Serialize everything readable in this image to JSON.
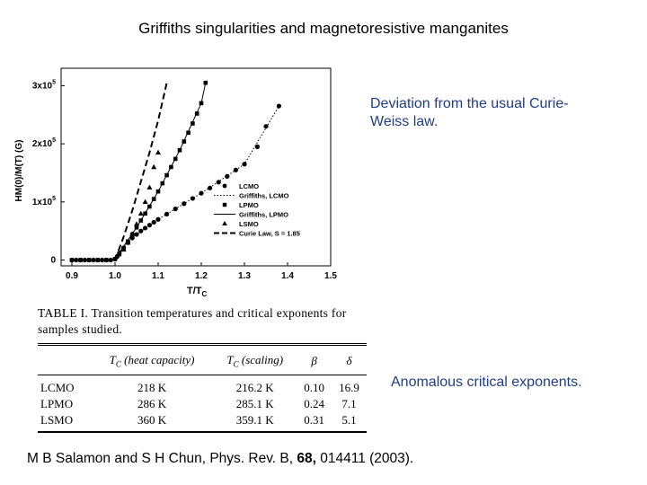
{
  "title": "Griffiths singularities and magnetoresistive manganites",
  "notes": {
    "deviation": "Deviation from the usual Curie-Weiss law.",
    "exponents": "Anomalous critical exponents."
  },
  "reference": {
    "prefix": "M B Salamon and S H Chun, Phys. Rev. B, ",
    "volume": "68,",
    "suffix": " 014411 (2003)."
  },
  "chart_data": {
    "type": "scatter",
    "xlabel": "T/T_C",
    "ylabel": "HM(0)/M(T) (G)",
    "xlim": [
      0.875,
      1.5
    ],
    "ylim": [
      -10000,
      330000
    ],
    "xticks": [
      0.9,
      1.0,
      1.1,
      1.2,
      1.3,
      1.4,
      1.5
    ],
    "xtick_labels": [
      "0.9",
      "1.0",
      "1.1",
      "1.2",
      "1.3",
      "1.4",
      "1.5"
    ],
    "yticks": [
      0,
      100000,
      200000,
      300000
    ],
    "ytick_labels": [
      "0",
      "1x10^5",
      "2x10^5",
      "3x10^5"
    ],
    "legend_position": "right",
    "series": [
      {
        "name": "LCMO",
        "marker": "circle",
        "x": [
          0.9,
          0.91,
          0.92,
          0.93,
          0.94,
          0.95,
          0.96,
          0.97,
          0.98,
          0.99,
          1.0,
          1.005,
          1.01,
          1.02,
          1.03,
          1.04,
          1.05,
          1.06,
          1.07,
          1.08,
          1.09,
          1.1,
          1.12,
          1.14,
          1.16,
          1.18,
          1.2,
          1.22,
          1.24,
          1.26,
          1.28,
          1.3,
          1.33,
          1.35,
          1.38
        ],
        "y": [
          0,
          0,
          0,
          0,
          0,
          0,
          0,
          0,
          0,
          0,
          1500,
          6000,
          12000,
          21000,
          30000,
          38000,
          44000,
          50000,
          55000,
          60000,
          65000,
          70000,
          79000,
          88000,
          97000,
          106000,
          115000,
          124000,
          134000,
          144000,
          155000,
          165000,
          195000,
          230000,
          265000
        ]
      },
      {
        "name": "Griffiths, LCMO",
        "line": "dotted",
        "x": [
          1.0,
          1.02,
          1.05,
          1.1,
          1.2,
          1.3,
          1.38
        ],
        "y": [
          1500,
          21000,
          44000,
          70000,
          115000,
          165000,
          265000
        ]
      },
      {
        "name": "LPMO",
        "marker": "square",
        "x": [
          0.9,
          0.92,
          0.94,
          0.96,
          0.98,
          1.0,
          1.01,
          1.02,
          1.03,
          1.04,
          1.05,
          1.06,
          1.07,
          1.08,
          1.09,
          1.1,
          1.11,
          1.12,
          1.13,
          1.14,
          1.15,
          1.16,
          1.17,
          1.18,
          1.19,
          1.2,
          1.21
        ],
        "y": [
          0,
          0,
          0,
          0,
          0,
          2000,
          10000,
          20000,
          32000,
          44000,
          56000,
          68000,
          80000,
          92000,
          105000,
          118000,
          132000,
          146000,
          160000,
          174000,
          189000,
          204000,
          219000,
          235000,
          252000,
          270000,
          305000
        ]
      },
      {
        "name": "Griffiths, LPMO",
        "line": "solid",
        "x": [
          1.0,
          1.05,
          1.1,
          1.15,
          1.2,
          1.21
        ],
        "y": [
          2000,
          56000,
          118000,
          189000,
          270000,
          305000
        ]
      },
      {
        "name": "LSMO",
        "marker": "triangle",
        "x": [
          1.02,
          1.03,
          1.04,
          1.05,
          1.06,
          1.07,
          1.08,
          1.09,
          1.1
        ],
        "y": [
          18000,
          30000,
          45000,
          62000,
          80000,
          100000,
          125000,
          160000,
          185000
        ]
      },
      {
        "name": "Curie Law, S = 1.85",
        "line": "dashed",
        "x": [
          1.0,
          1.02,
          1.04,
          1.06,
          1.08,
          1.1,
          1.12
        ],
        "y": [
          0,
          40000,
          85000,
          135000,
          185000,
          240000,
          305000
        ]
      }
    ]
  },
  "table": {
    "caption": "TABLE I. Transition temperatures and critical exponents for samples studied.",
    "headers": [
      "",
      "T_C (heat capacity)",
      "T_C (scaling)",
      "β",
      "δ"
    ],
    "rows": [
      [
        "LCMO",
        "218 K",
        "216.2 K",
        "0.10",
        "16.9"
      ],
      [
        "LPMO",
        "286 K",
        "285.1 K",
        "0.24",
        "7.1"
      ],
      [
        "LSMO",
        "360 K",
        "359.1 K",
        "0.31",
        "5.1"
      ]
    ]
  }
}
